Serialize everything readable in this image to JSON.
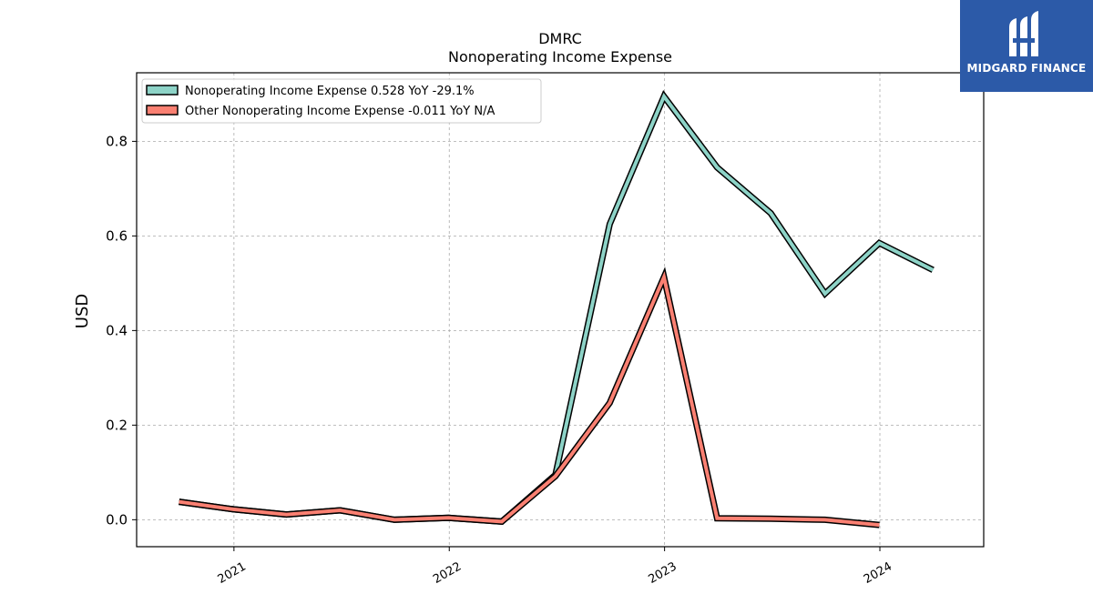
{
  "logo": {
    "text": "MIDGARD FINANCE",
    "icon": "midgard-logo-icon",
    "background": "#2c5aa8"
  },
  "chart_data": {
    "type": "line",
    "title": "DMRC",
    "subtitle": "Nonoperating Income Expense",
    "ylabel": "USD",
    "xlabel": "",
    "xlim": [
      "2020-07-20",
      "2024-06-25"
    ],
    "ylim": [
      -0.057,
      0.945
    ],
    "yticks": [
      0.0,
      0.2,
      0.4,
      0.6,
      0.8
    ],
    "ytick_labels": [
      "0.0",
      "0.2",
      "0.4",
      "0.6",
      "0.8"
    ],
    "xticks": [
      "2021-01-01",
      "2022-01-01",
      "2023-01-01",
      "2024-01-01"
    ],
    "xtick_labels": [
      "2021",
      "2022",
      "2023",
      "2024"
    ],
    "grid": true,
    "legend_position": "top-left",
    "series": [
      {
        "name": "Nonoperating Income Expense",
        "legend_label": "Nonoperating Income Expense  0.528 YoY -29.1%",
        "color": "#8dd3c7",
        "x": [
          "2020-09-30",
          "2020-12-31",
          "2021-03-31",
          "2021-06-30",
          "2021-09-30",
          "2021-12-31",
          "2022-03-31",
          "2022-06-30",
          "2022-09-30",
          "2022-12-31",
          "2023-03-31",
          "2023-06-30",
          "2023-09-30",
          "2023-12-31",
          "2024-03-31"
        ],
        "values": [
          0.038,
          0.022,
          0.011,
          0.02,
          0.0,
          0.004,
          -0.004,
          0.095,
          0.625,
          0.895,
          0.745,
          0.648,
          0.478,
          0.585,
          0.528
        ]
      },
      {
        "name": "Other Nonoperating Income Expense",
        "legend_label": "Other Nonoperating Income Expense  -0.011 YoY N/A",
        "color": "#fa8072",
        "x": [
          "2020-09-30",
          "2020-12-31",
          "2021-03-31",
          "2021-06-30",
          "2021-09-30",
          "2021-12-31",
          "2022-03-31",
          "2022-06-30",
          "2022-09-30",
          "2022-12-31",
          "2023-03-31",
          "2023-06-30",
          "2023-09-30",
          "2023-12-31"
        ],
        "values": [
          0.038,
          0.022,
          0.011,
          0.02,
          0.0,
          0.004,
          -0.004,
          0.092,
          0.247,
          0.513,
          0.003,
          0.002,
          0.0,
          -0.011
        ]
      }
    ]
  }
}
